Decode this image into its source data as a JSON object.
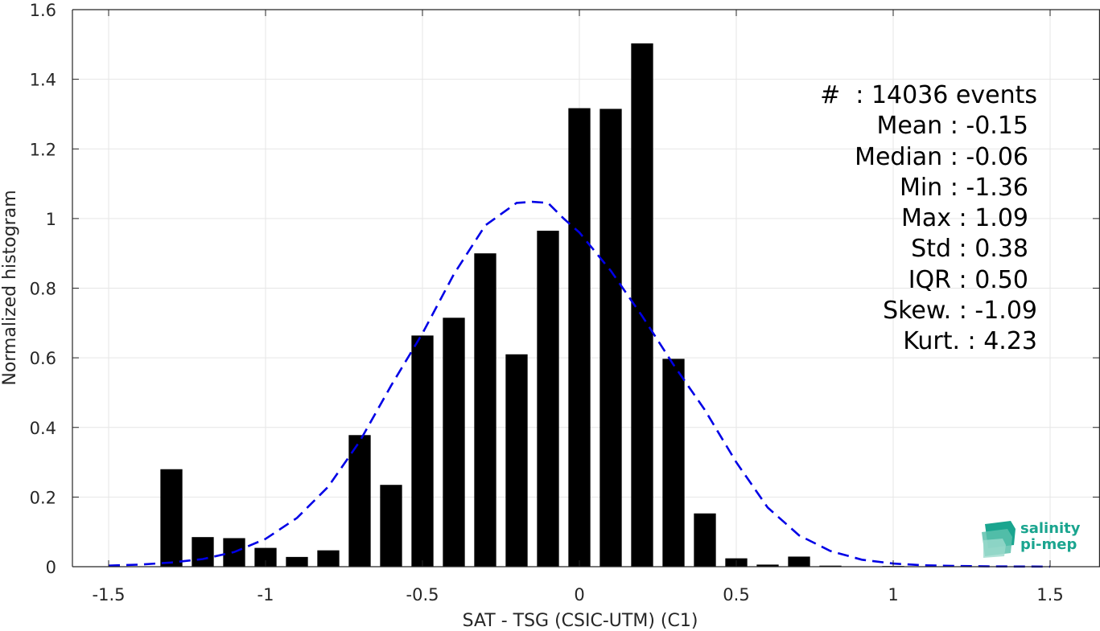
{
  "chart_data": {
    "type": "bar",
    "xlabel": "SAT - TSG (CSIC-UTM) (C1)",
    "ylabel": "Normalized histogram",
    "xlim": [
      -1.5,
      1.5
    ],
    "ylim": [
      0,
      1.6
    ],
    "xticks": [
      "-1.5",
      "-1",
      "-0.5",
      "0",
      "0.5",
      "1",
      "1.5"
    ],
    "yticks": [
      "0",
      "0.2",
      "0.4",
      "0.6",
      "0.8",
      "1",
      "1.2",
      "1.4",
      "1.6"
    ],
    "grid": true,
    "bar_color": "#000000",
    "series": [
      {
        "type": "bar",
        "x": [
          -1.3,
          -1.2,
          -1.1,
          -1.0,
          -0.9,
          -0.8,
          -0.7,
          -0.6,
          -0.5,
          -0.4,
          -0.3,
          -0.2,
          -0.1,
          0.0,
          0.1,
          0.2,
          0.3,
          0.4,
          0.5,
          0.6,
          0.7,
          0.8,
          1.0
        ],
        "values": [
          0.28,
          0.085,
          0.082,
          0.054,
          0.028,
          0.047,
          0.378,
          0.235,
          0.664,
          0.715,
          0.9,
          0.61,
          0.965,
          1.317,
          1.315,
          1.503,
          0.597,
          0.153,
          0.024,
          0.006,
          0.029,
          0.003,
          0.002
        ]
      },
      {
        "type": "line",
        "style": "dashed",
        "color": "#0000e6",
        "x": [
          -1.5,
          -1.4,
          -1.3,
          -1.2,
          -1.1,
          -1.0,
          -0.9,
          -0.8,
          -0.7,
          -0.6,
          -0.5,
          -0.4,
          -0.3,
          -0.2,
          -0.15,
          -0.1,
          -0.05,
          0.0,
          0.1,
          0.2,
          0.3,
          0.4,
          0.5,
          0.6,
          0.7,
          0.8,
          0.9,
          1.0,
          1.1,
          1.2,
          1.3,
          1.4,
          1.5
        ],
        "values": [
          0.003,
          0.006,
          0.012,
          0.022,
          0.042,
          0.08,
          0.14,
          0.23,
          0.36,
          0.52,
          0.67,
          0.84,
          0.98,
          1.045,
          1.048,
          1.045,
          1.0,
          0.96,
          0.85,
          0.72,
          0.58,
          0.45,
          0.3,
          0.17,
          0.09,
          0.045,
          0.02,
          0.009,
          0.004,
          0.002,
          0.001,
          0.0005,
          0.0003
        ]
      }
    ]
  },
  "stats": {
    "count": "#  : 14036 events",
    "mean": "Mean : -0.15",
    "median": "Median : -0.06",
    "min": "Min : -1.36",
    "max": "Max : 1.09",
    "std": "Std : 0.38",
    "iqr": "IQR : 0.50",
    "skew": "Skew. : -1.09",
    "kurt": "Kurt. : 4.23"
  },
  "logo": {
    "line1": "salinity",
    "line2": "pi-mep",
    "color": "#1aa58f"
  }
}
